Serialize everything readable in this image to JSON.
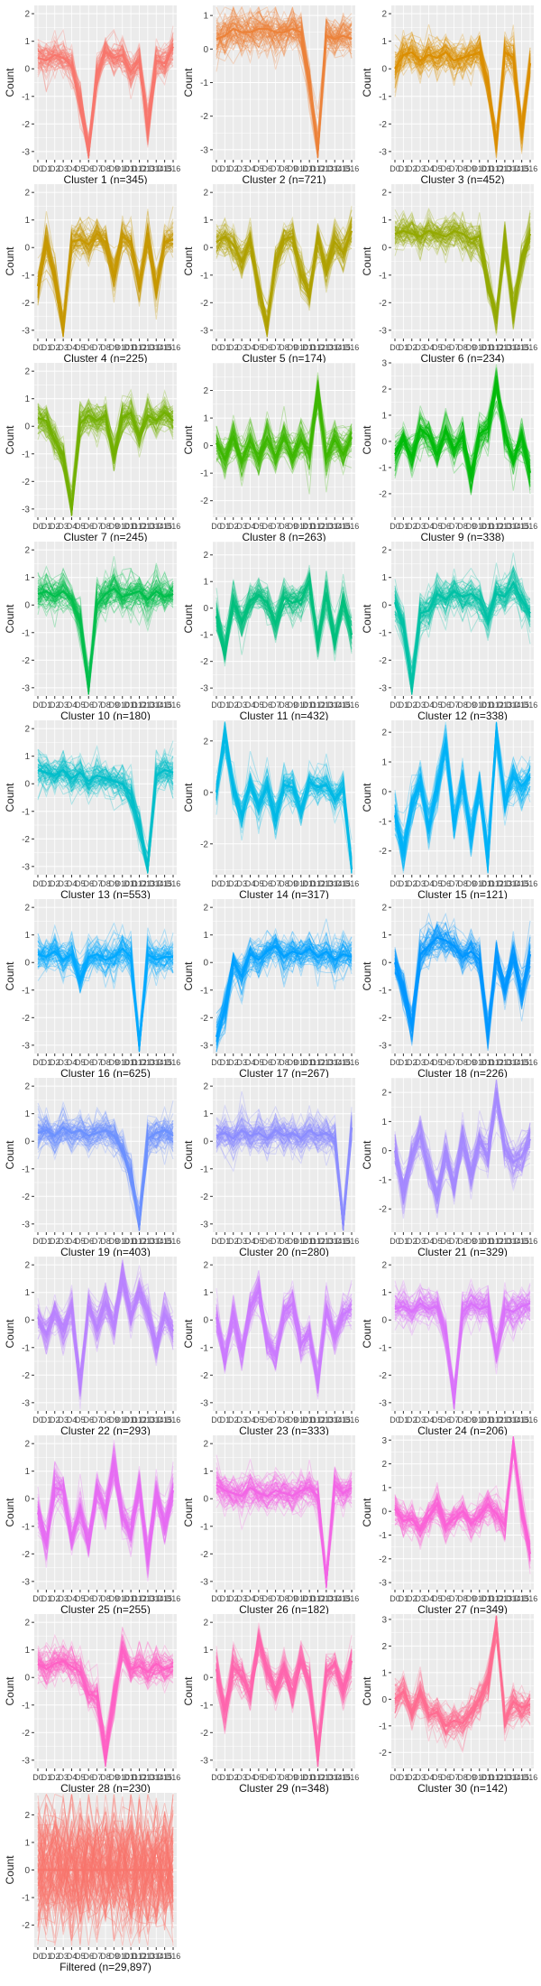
{
  "chart_data": {
    "type": "line",
    "panel_bg": "#ebebeb",
    "grid_color": "#ffffff",
    "x_labels": [
      "D0",
      "D1",
      "D2",
      "D3",
      "D4",
      "D5",
      "D6",
      "D7",
      "D8",
      "D9",
      "D10",
      "D11",
      "D12",
      "D13",
      "D14",
      "D15",
      "D16"
    ],
    "panels": [
      {
        "title": "Cluster 1 (n=345)",
        "ylabel": "Count",
        "color": "#F8766D",
        "ylim": [
          -3.3,
          2.3
        ],
        "yticks": [
          -3,
          -2,
          -1,
          0,
          1,
          2
        ],
        "profile": [
          0.4,
          0.3,
          0.5,
          0.4,
          0.1,
          -1.2,
          -3.0,
          -0.2,
          0.6,
          0.4,
          0.5,
          -0.1,
          0.3,
          -2.1,
          0.3,
          0.2,
          0.8
        ]
      },
      {
        "title": "Cluster 2 (n=721)",
        "ylabel": "Count",
        "color": "#EC8239",
        "ylim": [
          -3.3,
          1.3
        ],
        "yticks": [
          -3,
          -2,
          -1,
          0,
          1
        ],
        "profile": [
          0.3,
          0.4,
          0.6,
          0.5,
          0.5,
          0.6,
          0.6,
          0.5,
          0.5,
          0.6,
          0.5,
          -1.0,
          -3.0,
          0.4,
          0.3,
          0.4,
          0.3
        ]
      },
      {
        "title": "Cluster 3 (n=452)",
        "ylabel": "Count",
        "color": "#DB8E00",
        "ylim": [
          -3.3,
          2.3
        ],
        "yticks": [
          -3,
          -2,
          -1,
          0,
          1,
          2
        ],
        "profile": [
          0.0,
          0.5,
          0.6,
          0.3,
          0.5,
          0.4,
          0.6,
          0.3,
          0.4,
          0.5,
          0.6,
          -0.5,
          -2.8,
          0.6,
          0.4,
          -2.3,
          0.2
        ]
      },
      {
        "title": "Cluster 4 (n=225)",
        "ylabel": "Count",
        "color": "#C79800",
        "ylim": [
          -3.3,
          2.3
        ],
        "yticks": [
          -3,
          -2,
          -1,
          0,
          1,
          2
        ],
        "profile": [
          -1.4,
          0.2,
          -1.1,
          -2.9,
          0.2,
          0.3,
          0.1,
          0.5,
          0.2,
          -1.0,
          0.4,
          0.2,
          -1.4,
          0.4,
          -1.5,
          0.2,
          0.3
        ]
      },
      {
        "title": "Cluster 5 (n=174)",
        "ylabel": "Count",
        "color": "#AFA100",
        "ylim": [
          -3.3,
          2.3
        ],
        "yticks": [
          -3,
          -2,
          -1,
          0,
          1,
          2
        ],
        "profile": [
          0.2,
          0.4,
          0.1,
          -0.5,
          0.2,
          -1.5,
          -2.8,
          -0.6,
          0.3,
          0.4,
          -1.0,
          -1.7,
          0.3,
          -0.8,
          0.2,
          -0.2,
          0.6
        ]
      },
      {
        "title": "Cluster 6 (n=234)",
        "ylabel": "Count",
        "color": "#94AA00",
        "ylim": [
          -3.3,
          2.3
        ],
        "yticks": [
          -3,
          -2,
          -1,
          0,
          1,
          2
        ],
        "profile": [
          0.5,
          0.6,
          0.5,
          0.4,
          0.6,
          0.5,
          0.4,
          0.6,
          0.5,
          0.3,
          0.4,
          -1.3,
          -2.6,
          0.2,
          -2.4,
          -0.5,
          0.5
        ]
      },
      {
        "title": "Cluster 7 (n=245)",
        "ylabel": "Count",
        "color": "#72B000",
        "ylim": [
          -3.3,
          2.3
        ],
        "yticks": [
          -3,
          -2,
          -1,
          0,
          1,
          2
        ],
        "profile": [
          0.3,
          0.2,
          -0.5,
          -1.1,
          -3.0,
          0.1,
          0.4,
          0.2,
          0.4,
          -1.0,
          0.3,
          0.5,
          -0.3,
          0.4,
          0.2,
          0.5,
          0.2
        ]
      },
      {
        "title": "Cluster 8 (n=263)",
        "ylabel": "Count",
        "color": "#3DB700",
        "ylim": [
          -2.6,
          3.0
        ],
        "yticks": [
          -2,
          -1,
          0,
          1,
          2
        ],
        "profile": [
          0.1,
          -0.5,
          0.3,
          -0.6,
          0.2,
          -0.5,
          0.3,
          -0.4,
          0.3,
          -0.4,
          0.2,
          -0.3,
          2.0,
          -0.4,
          0.2,
          -0.3,
          0.3
        ]
      },
      {
        "title": "Cluster 9 (n=338)",
        "ylabel": "Count",
        "color": "#00BB0A",
        "ylim": [
          -2.9,
          3.0
        ],
        "yticks": [
          -2,
          -1,
          0,
          1,
          2,
          3
        ],
        "profile": [
          -0.5,
          0.1,
          -0.6,
          0.5,
          0.2,
          -0.5,
          0.4,
          -0.3,
          0.2,
          -1.4,
          0.3,
          0.5,
          2.2,
          0.3,
          -0.8,
          0.2,
          -1.2
        ]
      },
      {
        "title": "Cluster 10 (n=180)",
        "ylabel": "Count",
        "color": "#00BE4C",
        "ylim": [
          -3.3,
          2.3
        ],
        "yticks": [
          -3,
          -2,
          -1,
          0,
          1,
          2
        ],
        "profile": [
          0.4,
          0.5,
          0.3,
          0.5,
          0.2,
          -0.6,
          -2.9,
          0.0,
          0.4,
          0.6,
          0.3,
          0.4,
          0.5,
          0.2,
          0.5,
          0.3,
          0.4
        ]
      },
      {
        "title": "Cluster 11 (n=432)",
        "ylabel": "Count",
        "color": "#00C07D",
        "ylim": [
          -3.3,
          2.5
        ],
        "yticks": [
          -3,
          -2,
          -1,
          0,
          1,
          2
        ],
        "profile": [
          -0.3,
          -1.6,
          0.2,
          -0.5,
          0.3,
          0.5,
          0.2,
          -0.6,
          0.4,
          0.2,
          0.3,
          1.0,
          -1.3,
          0.5,
          -1.2,
          0.3,
          -1.0
        ]
      },
      {
        "title": "Cluster 12 (n=338)",
        "ylabel": "Count",
        "color": "#00C1A6",
        "ylim": [
          -3.3,
          2.3
        ],
        "yticks": [
          -3,
          -2,
          -1,
          0,
          1,
          2
        ],
        "profile": [
          0.1,
          -0.8,
          -3.0,
          -0.3,
          -0.2,
          0.4,
          0.2,
          0.5,
          0.3,
          0.4,
          0.2,
          -0.5,
          0.4,
          0.3,
          0.8,
          0.2,
          -0.3
        ]
      },
      {
        "title": "Cluster 13 (n=553)",
        "ylabel": "Count",
        "color": "#00BECA",
        "ylim": [
          -3.3,
          2.3
        ],
        "yticks": [
          -3,
          -2,
          -1,
          0,
          1,
          2
        ],
        "profile": [
          0.5,
          0.4,
          0.3,
          0.5,
          0.2,
          0.4,
          0.1,
          0.3,
          0.2,
          0.1,
          0.0,
          -0.4,
          -1.6,
          -3.0,
          0.3,
          0.5,
          0.4
        ]
      },
      {
        "title": "Cluster 14 (n=317)",
        "ylabel": "Count",
        "color": "#00B9E6",
        "ylim": [
          -3.2,
          2.8
        ],
        "yticks": [
          -2,
          0,
          2
        ],
        "profile": [
          0.0,
          2.2,
          0.2,
          -0.9,
          0.3,
          -0.5,
          0.2,
          -1.0,
          0.3,
          0.2,
          -0.7,
          0.4,
          0.2,
          0.3,
          -0.3,
          0.2,
          -3.0
        ]
      },
      {
        "title": "Cluster 15 (n=121)",
        "ylabel": "Count",
        "color": "#00B2F7",
        "ylim": [
          -2.8,
          2.4
        ],
        "yticks": [
          -2,
          -1,
          0,
          1,
          2
        ],
        "profile": [
          -0.8,
          -2.0,
          -0.5,
          0.3,
          -1.2,
          0.2,
          1.5,
          -1.0,
          0.3,
          -1.5,
          0.2,
          -2.1,
          2.0,
          -0.3,
          0.5,
          0.2,
          0.5
        ]
      },
      {
        "title": "Cluster 16 (n=625)",
        "ylabel": "Count",
        "color": "#00A9FF",
        "ylim": [
          -3.3,
          2.3
        ],
        "yticks": [
          -3,
          -2,
          -1,
          0,
          1,
          2
        ],
        "profile": [
          0.3,
          0.2,
          0.4,
          0.1,
          0.3,
          -0.6,
          0.2,
          0.3,
          0.1,
          0.2,
          0.5,
          0.2,
          -3.0,
          0.3,
          0.1,
          0.2,
          0.2
        ]
      },
      {
        "title": "Cluster 17 (n=267)",
        "ylabel": "Count",
        "color": "#00A0FF",
        "ylim": [
          -3.3,
          2.3
        ],
        "yticks": [
          -3,
          -2,
          -1,
          0,
          1,
          2
        ],
        "profile": [
          -2.7,
          -1.7,
          0.0,
          -0.5,
          0.3,
          0.1,
          0.4,
          0.6,
          0.2,
          0.4,
          0.3,
          0.5,
          0.2,
          0.4,
          0.1,
          0.3,
          0.2
        ]
      },
      {
        "title": "Cluster 18 (n=226)",
        "ylabel": "Count",
        "color": "#0096FF",
        "ylim": [
          -3.3,
          2.3
        ],
        "yticks": [
          -3,
          -2,
          -1,
          0,
          1,
          2
        ],
        "profile": [
          0.0,
          -1.0,
          -2.3,
          0.3,
          0.6,
          0.9,
          0.8,
          0.6,
          0.2,
          0.4,
          0.1,
          -2.6,
          0.2,
          -1.0,
          0.3,
          -1.2,
          0.3
        ]
      },
      {
        "title": "Cluster 19 (n=403)",
        "ylabel": "Count",
        "color": "#6B91FF",
        "ylim": [
          -3.3,
          2.3
        ],
        "yticks": [
          -3,
          -2,
          -1,
          0,
          1,
          2
        ],
        "profile": [
          0.3,
          0.4,
          0.2,
          0.5,
          0.3,
          0.4,
          0.2,
          0.3,
          0.4,
          0.2,
          -0.3,
          -1.2,
          -3.0,
          0.1,
          0.3,
          0.4,
          0.2
        ]
      },
      {
        "title": "Cluster 20 (n=280)",
        "ylabel": "Count",
        "color": "#8B8CFF",
        "ylim": [
          -3.3,
          2.3
        ],
        "yticks": [
          -3,
          -2,
          -1,
          0,
          1,
          2
        ],
        "profile": [
          0.2,
          0.3,
          0.1,
          0.4,
          0.2,
          0.3,
          0.1,
          0.4,
          0.2,
          0.3,
          0.1,
          0.4,
          0.2,
          0.3,
          0.1,
          -3.0,
          0.5
        ]
      },
      {
        "title": "Cluster 21 (n=329)",
        "ylabel": "Count",
        "color": "#A58AFF",
        "ylim": [
          -2.8,
          2.5
        ],
        "yticks": [
          -2,
          -1,
          0,
          1,
          2
        ],
        "profile": [
          0.0,
          -1.4,
          -0.2,
          0.5,
          -0.6,
          -1.5,
          -0.1,
          -1.2,
          0.4,
          -0.8,
          0.3,
          -0.2,
          1.9,
          0.1,
          -0.4,
          -0.2,
          0.4
        ]
      },
      {
        "title": "Cluster 22 (n=293)",
        "ylabel": "Count",
        "color": "#B983FF",
        "ylim": [
          -3.3,
          2.3
        ],
        "yticks": [
          -3,
          -2,
          -1,
          0,
          1,
          2
        ],
        "profile": [
          0.1,
          -0.5,
          0.3,
          -0.4,
          0.4,
          -2.4,
          0.5,
          -0.3,
          0.6,
          -0.2,
          1.6,
          0.2,
          1.0,
          0.3,
          -1.0,
          0.2,
          -0.4
        ]
      },
      {
        "title": "Cluster 23 (n=333)",
        "ylabel": "Count",
        "color": "#CB7BFF",
        "ylim": [
          -3.3,
          2.3
        ],
        "yticks": [
          -3,
          -2,
          -1,
          0,
          1,
          2
        ],
        "profile": [
          0.1,
          -1.4,
          0.2,
          -1.2,
          0.4,
          1.1,
          -0.8,
          -1.3,
          0.3,
          0.6,
          -0.9,
          -0.5,
          -2.3,
          0.4,
          -0.6,
          0.2,
          0.4
        ]
      },
      {
        "title": "Cluster 24 (n=206)",
        "ylabel": "Count",
        "color": "#DA72FB",
        "ylim": [
          -3.3,
          2.3
        ],
        "yticks": [
          -3,
          -2,
          -1,
          0,
          1,
          2
        ],
        "profile": [
          0.4,
          0.5,
          0.3,
          0.6,
          0.4,
          0.5,
          -0.5,
          -2.9,
          0.3,
          0.6,
          0.4,
          0.5,
          -1.2,
          0.4,
          0.3,
          0.5,
          0.6
        ]
      },
      {
        "title": "Cluster 25 (n=255)",
        "ylabel": "Count",
        "color": "#E76BF3",
        "ylim": [
          -3.3,
          2.3
        ],
        "yticks": [
          -3,
          -2,
          -1,
          0,
          1,
          2
        ],
        "profile": [
          -0.5,
          -1.6,
          0.4,
          0.3,
          -1.5,
          -0.4,
          -1.6,
          0.3,
          -0.5,
          1.3,
          -0.6,
          -1.3,
          0.5,
          -2.2,
          0.2,
          -1.0,
          0.3
        ]
      },
      {
        "title": "Cluster 26 (n=182)",
        "ylabel": "Count",
        "color": "#F365E6",
        "ylim": [
          -3.3,
          2.3
        ],
        "yticks": [
          -3,
          -2,
          -1,
          0,
          1,
          2
        ],
        "profile": [
          0.5,
          0.3,
          0.2,
          0.1,
          0.4,
          0.2,
          0.1,
          0.3,
          0.2,
          0.1,
          0.3,
          0.4,
          0.1,
          -3.0,
          0.5,
          0.2,
          0.4
        ]
      },
      {
        "title": "Cluster 27 (n=349)",
        "ylabel": "Count",
        "color": "#FB61D7",
        "ylim": [
          -3.3,
          3.2
        ],
        "yticks": [
          -3,
          -2,
          -1,
          0,
          1,
          2,
          3
        ],
        "profile": [
          0.1,
          -0.4,
          -0.3,
          -0.8,
          -0.2,
          0.3,
          -0.6,
          -0.3,
          0.0,
          -0.5,
          -0.2,
          0.3,
          -0.1,
          -0.6,
          2.8,
          0.1,
          -1.8
        ]
      },
      {
        "title": "Cluster 28 (n=230)",
        "ylabel": "Count",
        "color": "#FF61C5",
        "ylim": [
          -3.3,
          2.3
        ],
        "yticks": [
          -3,
          -2,
          -1,
          0,
          1,
          2
        ],
        "profile": [
          0.5,
          0.3,
          0.5,
          0.6,
          0.4,
          0.2,
          -0.6,
          -0.7,
          -2.8,
          -0.8,
          1.0,
          0.3,
          0.4,
          0.2,
          0.5,
          0.3,
          0.4
        ]
      },
      {
        "title": "Cluster 29 (n=348)",
        "ylabel": "Count",
        "color": "#FF65AE",
        "ylim": [
          -3.3,
          2.3
        ],
        "yticks": [
          -3,
          -2,
          -1,
          0,
          1,
          2
        ],
        "profile": [
          0.3,
          -1.2,
          0.4,
          0.0,
          -0.6,
          1.3,
          0.2,
          -0.4,
          0.3,
          -0.5,
          0.6,
          -0.2,
          -2.8,
          0.2,
          0.5,
          -0.5,
          0.6
        ]
      },
      {
        "title": "Cluster 30 (n=142)",
        "ylabel": "Count",
        "color": "#FF6C91",
        "ylim": [
          -2.6,
          3.2
        ],
        "yticks": [
          -2,
          -1,
          0,
          1,
          2,
          3
        ],
        "profile": [
          0.0,
          0.3,
          -0.5,
          0.2,
          -0.6,
          -0.5,
          -1.0,
          -0.8,
          -0.9,
          -0.5,
          0.0,
          0.7,
          2.8,
          -0.8,
          -0.1,
          -0.3,
          -0.2
        ]
      },
      {
        "title": "Filtered (n=29,897)",
        "ylabel": "Count",
        "color": "#F8766D",
        "ylim": [
          -2.8,
          2.8
        ],
        "yticks": [
          -2,
          -1,
          0,
          1,
          2
        ],
        "profile": [
          0,
          0,
          0,
          0,
          0,
          0,
          0,
          0,
          0,
          0,
          0,
          0,
          0,
          0,
          0,
          0,
          0
        ],
        "spread": 3.4
      }
    ]
  }
}
